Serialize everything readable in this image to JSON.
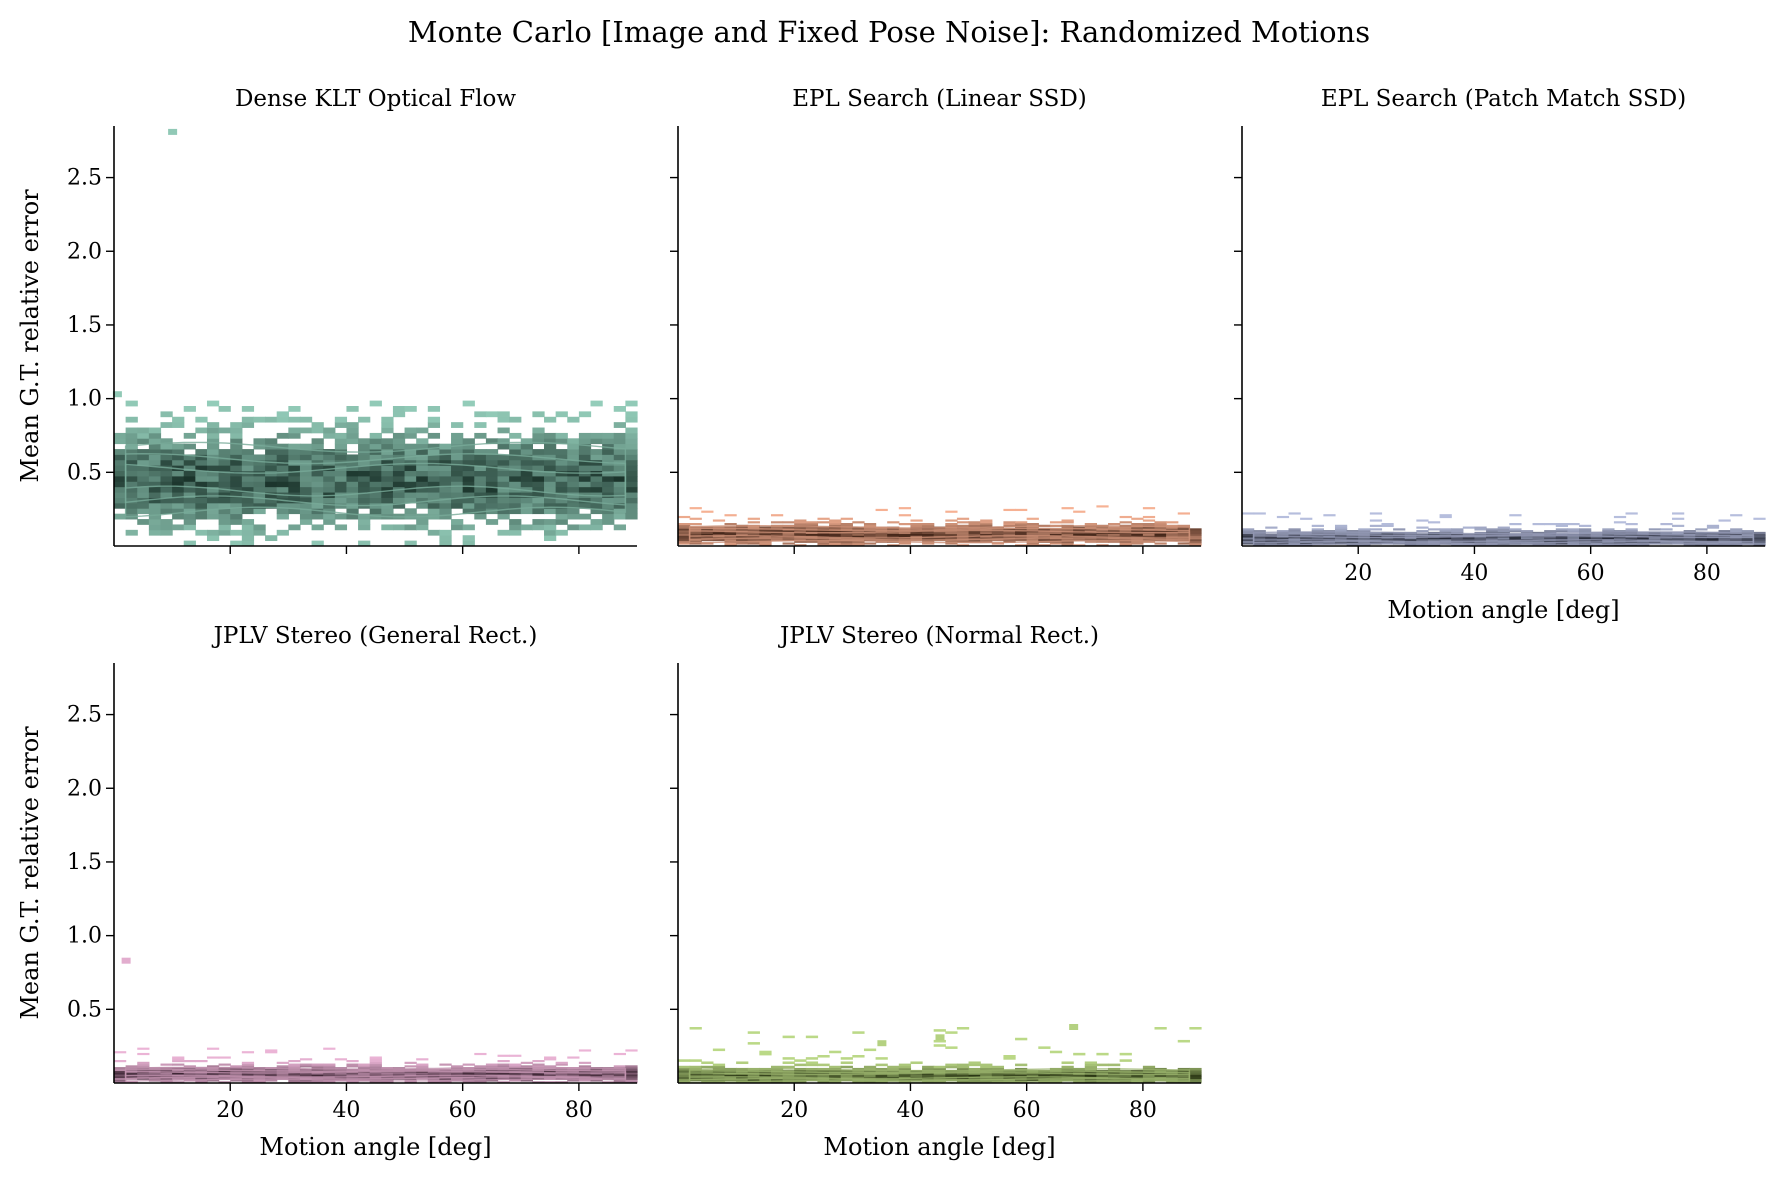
{
  "title": "Monte Carlo [Image and Fixed Pose Noise]: Randomized Motions",
  "chart_data": {
    "type": "heatmap",
    "layout": "facet grid, 2 rows x 3 columns, shared axes",
    "xlabel": "Motion angle [deg]",
    "ylabel": "Mean G.T. relative error",
    "xlim": [
      0,
      90
    ],
    "ylim": [
      0,
      2.85
    ],
    "xticks": [
      20,
      40,
      60,
      80
    ],
    "yticks": [
      0.5,
      1.0,
      1.5,
      2.0,
      2.5
    ],
    "xtick_labels": [
      "20",
      "40",
      "60",
      "80"
    ],
    "ytick_labels": [
      "0.5",
      "1.0",
      "1.5",
      "2.0",
      "2.5"
    ],
    "grid": false,
    "legend": "none",
    "overlay": "density contours",
    "panels": [
      {
        "title": "Dense KLT Optical Flow",
        "row": 0,
        "col": 0,
        "color": "#5fb89a",
        "error_range": [
          0.0,
          0.95
        ],
        "typical_error": 0.45,
        "spread": 0.22,
        "outliers": [
          [
            10,
            2.81
          ],
          [
            0.5,
            1.03
          ]
        ]
      },
      {
        "title": "EPL Search (Linear SSD)",
        "row": 0,
        "col": 1,
        "color": "#f2885a",
        "error_range": [
          0.0,
          0.27
        ],
        "typical_error": 0.08,
        "spread": 0.05,
        "outliers": []
      },
      {
        "title": "EPL Search (Patch Match SSD)",
        "row": 0,
        "col": 2,
        "color": "#8f9bcb",
        "error_range": [
          0.0,
          0.22
        ],
        "typical_error": 0.05,
        "spread": 0.04,
        "outliers": []
      },
      {
        "title": "JPLV Stereo (General Rect.)",
        "row": 1,
        "col": 0,
        "color": "#e08cc0",
        "error_range": [
          0.0,
          0.24
        ],
        "typical_error": 0.06,
        "spread": 0.04,
        "outliers": [
          [
            2,
            0.83
          ]
        ]
      },
      {
        "title": "JPLV Stereo (Normal Rect.)",
        "row": 1,
        "col": 1,
        "color": "#97c446",
        "error_range": [
          0.0,
          0.38
        ],
        "typical_error": 0.05,
        "spread": 0.04,
        "outliers": [
          [
            68,
            0.38
          ],
          [
            45,
            0.31
          ],
          [
            35,
            0.27
          ]
        ]
      }
    ]
  }
}
